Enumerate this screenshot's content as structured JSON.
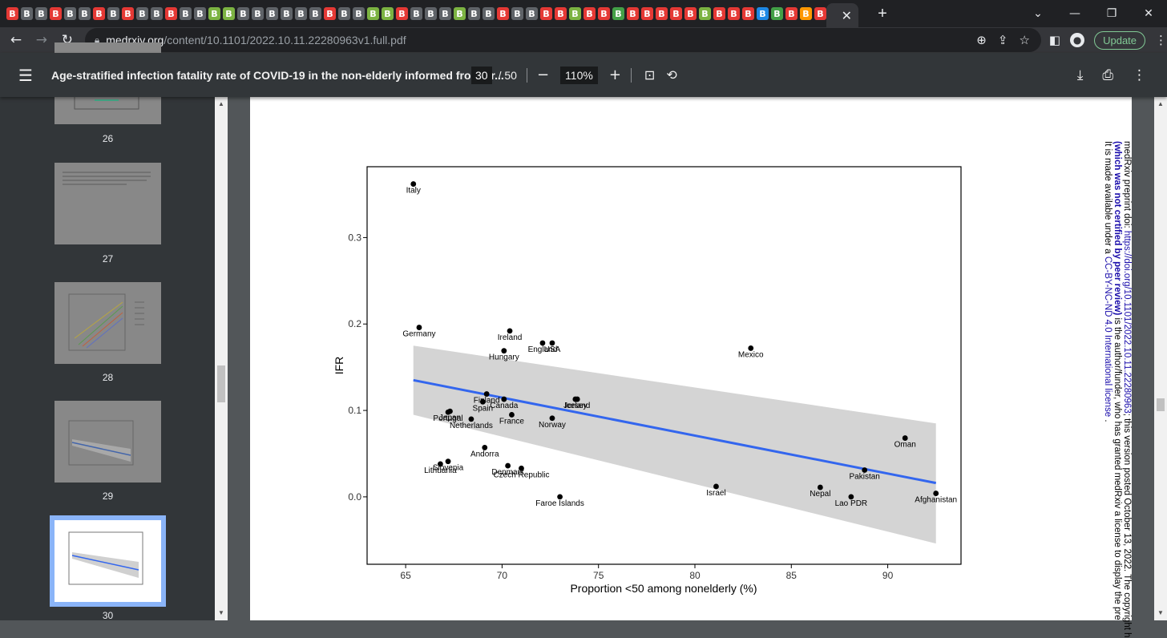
{
  "browser": {
    "tabs_glyph": "B",
    "tab_colors": [
      "#e53935",
      "#5f6368",
      "#5f6368",
      "#e53935",
      "#5f6368",
      "#5f6368",
      "#e53935",
      "#5f6368",
      "#e53935",
      "#5f6368",
      "#5f6368",
      "#e53935",
      "#5f6368",
      "#5f6368",
      "#7cb342",
      "#7cb342",
      "#5f6368",
      "#5f6368",
      "#5f6368",
      "#5f6368",
      "#5f6368",
      "#5f6368",
      "#e53935",
      "#5f6368",
      "#5f6368",
      "#7cb342",
      "#7cb342",
      "#e53935",
      "#5f6368",
      "#5f6368",
      "#5f6368",
      "#7cb342",
      "#5f6368",
      "#5f6368",
      "#e53935",
      "#5f6368",
      "#5f6368",
      "#e53935",
      "#e53935",
      "#7cb342",
      "#e53935",
      "#e53935",
      "#43a047",
      "#e53935",
      "#e53935",
      "#e53935",
      "#e53935",
      "#e53935",
      "#7cb342",
      "#e53935",
      "#e53935",
      "#e53935",
      "#1e88e5",
      "#43a047",
      "#e53935",
      "#ff9800",
      "#e53935"
    ],
    "active_tab_close": "✕",
    "new_tab": "+",
    "url_host": "medrxiv.org",
    "url_path": "/content/10.1101/2022.10.11.22280963v1.full.pdf",
    "update_label": "Update"
  },
  "pdf": {
    "title": "Age-stratified infection fatality rate of COVID-19 in the non-elderly informed from pr...",
    "current_page": "30",
    "total_pages": "/ 50",
    "zoom": "110%",
    "thumbnails": [
      "26",
      "27",
      "28",
      "29",
      "30"
    ]
  },
  "page_note": {
    "line1_a": "medRxiv preprint doi: ",
    "line1_link": "https://doi.org/10.1101/2022.10.11.22280963",
    "line1_b": "; this version posted October 13, 2022. The copyright h",
    "line2_a": "(which was not certified by peer review)",
    "line2_b": " is the author/funder, who has granted medRxiv a license to display the pre",
    "line3_a": "It is made available under a ",
    "line3_link": "CC-BY-NC-ND 4.0 International license",
    "line3_b": " ."
  },
  "chart_data": {
    "type": "scatter",
    "xlabel": "Proportion <50 among nonelderly (%)",
    "ylabel": "IFR",
    "xlim": [
      63.0,
      93.8
    ],
    "ylim": [
      -0.078,
      0.382
    ],
    "xticks": [
      65,
      70,
      75,
      80,
      85,
      90
    ],
    "yticks": [
      0.0,
      0.1,
      0.2,
      0.3
    ],
    "ytick_labels": [
      "0.0",
      "0.1",
      "0.2",
      "0.3"
    ],
    "points": [
      {
        "label": "Italy",
        "x": 65.4,
        "y": 0.362
      },
      {
        "label": "Germany",
        "x": 65.7,
        "y": 0.196
      },
      {
        "label": "Ireland",
        "x": 70.4,
        "y": 0.192
      },
      {
        "label": "USA",
        "x": 72.6,
        "y": 0.178
      },
      {
        "label": "England",
        "x": 72.1,
        "y": 0.178
      },
      {
        "label": "Hungary",
        "x": 70.1,
        "y": 0.169
      },
      {
        "label": "Mexico",
        "x": 82.9,
        "y": 0.172
      },
      {
        "label": "Finland",
        "x": 69.2,
        "y": 0.119
      },
      {
        "label": "Jersey",
        "x": 73.8,
        "y": 0.113
      },
      {
        "label": "Iceland",
        "x": 73.9,
        "y": 0.113
      },
      {
        "label": "Canada",
        "x": 70.1,
        "y": 0.113
      },
      {
        "label": "Spain",
        "x": 69.0,
        "y": 0.11
      },
      {
        "label": "Japan",
        "x": 67.3,
        "y": 0.099
      },
      {
        "label": "Portugal",
        "x": 67.2,
        "y": 0.098
      },
      {
        "label": "Netherlands",
        "x": 68.4,
        "y": 0.09
      },
      {
        "label": "France",
        "x": 70.5,
        "y": 0.095
      },
      {
        "label": "Norway",
        "x": 72.6,
        "y": 0.091
      },
      {
        "label": "Andorra",
        "x": 69.1,
        "y": 0.057
      },
      {
        "label": "Slovenia",
        "x": 67.2,
        "y": 0.041
      },
      {
        "label": "Lithuania",
        "x": 66.8,
        "y": 0.038
      },
      {
        "label": "Denmark",
        "x": 70.3,
        "y": 0.036
      },
      {
        "label": "Czech Republic",
        "x": 71.0,
        "y": 0.033
      },
      {
        "label": "Faroe Islands",
        "x": 73.0,
        "y": 0.0
      },
      {
        "label": "Israel",
        "x": 81.1,
        "y": 0.012
      },
      {
        "label": "Nepal",
        "x": 86.5,
        "y": 0.011
      },
      {
        "label": "Lao PDR",
        "x": 88.1,
        "y": 0.0
      },
      {
        "label": "Pakistan",
        "x": 88.8,
        "y": 0.031
      },
      {
        "label": "Oman",
        "x": 90.9,
        "y": 0.068
      },
      {
        "label": "Afghanistan",
        "x": 92.5,
        "y": 0.004
      }
    ],
    "fit_line": {
      "x": [
        65.4,
        92.5
      ],
      "y": [
        0.135,
        0.016
      ],
      "color": "#3366ee"
    },
    "ci_band": {
      "x": [
        65.4,
        92.5
      ],
      "lower": [
        0.095,
        -0.054
      ],
      "upper": [
        0.175,
        0.085
      ],
      "color": "#d4d4d4"
    }
  }
}
